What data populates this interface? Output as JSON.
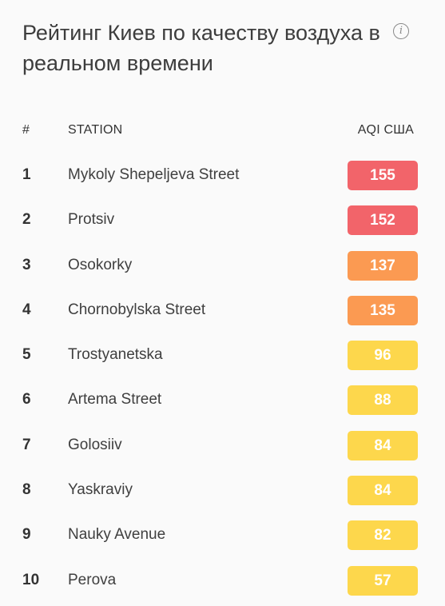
{
  "title": "Рейтинг Киев по качеству воздуха в реальном времени",
  "info_icon": "info-icon",
  "table": {
    "headers": {
      "num": "#",
      "station": "STATION",
      "aqi": "AQI США"
    },
    "rows": [
      {
        "rank": "1",
        "station": "Mykoly Shepeljeva Street",
        "aqi": "155",
        "color": "#f2646a"
      },
      {
        "rank": "2",
        "station": "Protsiv",
        "aqi": "152",
        "color": "#f2646a"
      },
      {
        "rank": "3",
        "station": "Osokorky",
        "aqi": "137",
        "color": "#fb9a52"
      },
      {
        "rank": "4",
        "station": "Chornobylska Street",
        "aqi": "135",
        "color": "#fb9a52"
      },
      {
        "rank": "5",
        "station": "Trostyanetska",
        "aqi": "96",
        "color": "#fdd74c"
      },
      {
        "rank": "6",
        "station": "Artema Street",
        "aqi": "88",
        "color": "#fdd74c"
      },
      {
        "rank": "7",
        "station": "Golosiiv",
        "aqi": "84",
        "color": "#fdd74c"
      },
      {
        "rank": "8",
        "station": "Yaskraviy",
        "aqi": "84",
        "color": "#fdd74c"
      },
      {
        "rank": "9",
        "station": "Nauky Avenue",
        "aqi": "82",
        "color": "#fdd74c"
      },
      {
        "rank": "10",
        "station": "Perova",
        "aqi": "57",
        "color": "#fdd74c"
      }
    ]
  }
}
